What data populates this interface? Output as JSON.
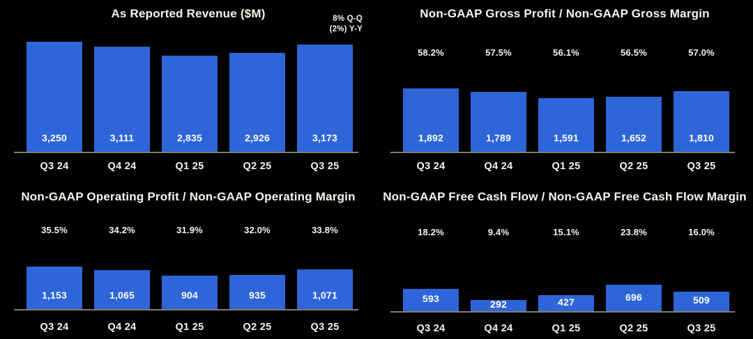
{
  "page": {
    "background": "#010101",
    "description": "Quarterly financial results dashboard with four bar charts"
  },
  "colors": {
    "bar_blue": "#2e65d9",
    "text_primary": "#f6f4ee",
    "value_text": "#ffffff",
    "axis_line": "#857c6a"
  },
  "chart_data": [
    {
      "id": "as-reported-revenue",
      "type": "bar",
      "title": "As Reported Revenue ($M)",
      "categories": [
        "Q3 24",
        "Q4 24",
        "Q1 25",
        "Q2 25",
        "Q3 25"
      ],
      "values": [
        3250,
        3111,
        2835,
        2926,
        3173
      ],
      "value_labels": [
        "3,250",
        "3,111",
        "2,835",
        "2,926",
        "3,173"
      ],
      "pct_labels": null,
      "annotation_lines": [
        "8% Q-Q",
        "(2%) Y-Y"
      ],
      "ylim": [
        0,
        3250
      ],
      "grid": false,
      "legend": false,
      "bar_color": "#2e65d9"
    },
    {
      "id": "non-gaap-gross-profit",
      "type": "bar",
      "title": "Non-GAAP Gross Profit / Non-GAAP Gross Margin",
      "categories": [
        "Q3 24",
        "Q4 24",
        "Q1 25",
        "Q2 25",
        "Q3 25"
      ],
      "values": [
        1892,
        1789,
        1591,
        1652,
        1810
      ],
      "value_labels": [
        "1,892",
        "1,789",
        "1,591",
        "1,652",
        "1,810"
      ],
      "pct_labels": [
        "58.2%",
        "57.5%",
        "56.1%",
        "56.5%",
        "57.0%"
      ],
      "annotation_lines": null,
      "ylim": [
        0,
        1892
      ],
      "grid": false,
      "legend": false,
      "bar_color": "#2e65d9"
    },
    {
      "id": "non-gaap-operating-profit",
      "type": "bar",
      "title": "Non-GAAP Operating Profit / Non-GAAP Operating Margin",
      "categories": [
        "Q3 24",
        "Q4 24",
        "Q1 25",
        "Q2 25",
        "Q3 25"
      ],
      "values": [
        1153,
        1065,
        904,
        935,
        1071
      ],
      "value_labels": [
        "1,153",
        "1,065",
        "904",
        "935",
        "1,071"
      ],
      "pct_labels": [
        "35.5%",
        "34.2%",
        "31.9%",
        "32.0%",
        "33.8%"
      ],
      "annotation_lines": null,
      "ylim": [
        0,
        1153
      ],
      "grid": false,
      "legend": false,
      "bar_color": "#2e65d9"
    },
    {
      "id": "non-gaap-free-cash-flow",
      "type": "bar",
      "title": "Non-GAAP Free Cash Flow / Non-GAAP Free Cash Flow Margin",
      "categories": [
        "Q3 24",
        "Q4 24",
        "Q1 25",
        "Q2 25",
        "Q3 25"
      ],
      "values": [
        593,
        292,
        427,
        696,
        509
      ],
      "value_labels": [
        "593",
        "292",
        "427",
        "696",
        "509"
      ],
      "pct_labels": [
        "18.2%",
        "9.4%",
        "15.1%",
        "23.8%",
        "16.0%"
      ],
      "annotation_lines": null,
      "ylim": [
        0,
        696
      ],
      "grid": false,
      "legend": false,
      "bar_color": "#2e65d9"
    }
  ]
}
